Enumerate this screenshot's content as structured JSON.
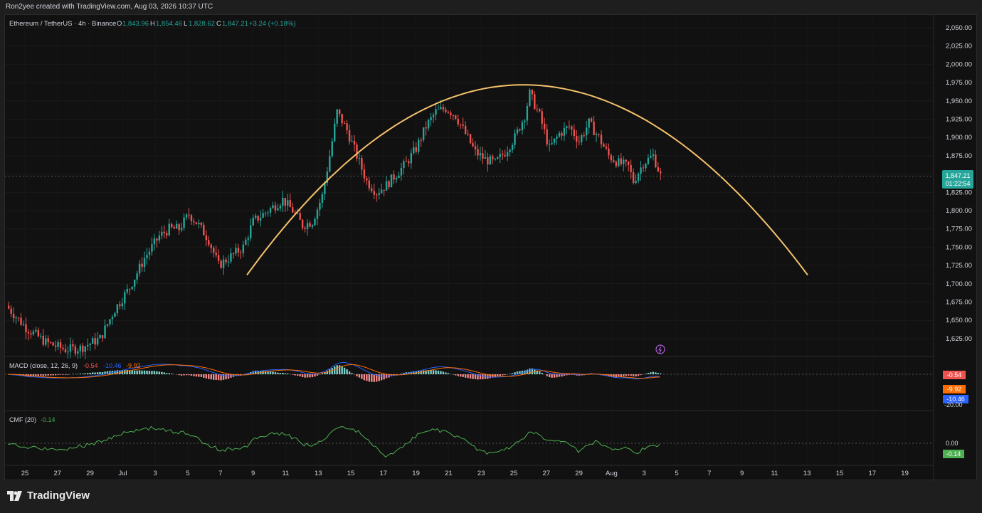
{
  "header": {
    "credit": "Ron2yee created with TradingView.com, Aug 03, 2026 10:37 UTC"
  },
  "legend": {
    "symbol": "Ethereum / TetherUS · 4h · Binance",
    "o_label": "O",
    "o_value": "1,843.96",
    "h_label": "H",
    "h_value": "1,854.46",
    "l_label": "L",
    "l_value": "1,828.62",
    "c_label": "C",
    "c_value": "1,847.21",
    "change": "+3.24 (+0.18%)"
  },
  "price_tag": {
    "value": "1,847.21",
    "countdown": "01:22:54"
  },
  "macd": {
    "label": "MACD (close, 12, 26, 9)",
    "v1": "-0.54",
    "v2": "-10.46",
    "v3": "-9.92",
    "tags": [
      "-0.54",
      "-9.92",
      "-10.46"
    ],
    "axis_tick": "-20.00"
  },
  "cmf": {
    "label": "CMF (20)",
    "value": "-0.14",
    "axis_tick": "0.00",
    "tag": "-0.14"
  },
  "brand": {
    "name": "TradingView"
  },
  "colors": {
    "up": "#26a69a",
    "down": "#ef5350",
    "arc": "#f5c26b",
    "macd_line": "#2962ff",
    "signal_line": "#ff6d00",
    "cmf_line": "#4caf50"
  },
  "chart_data": {
    "type": "candlestick",
    "title": "Ethereum / TetherUS · 4h · Binance",
    "ylim": [
      1600,
      2075
    ],
    "y_ticks": [
      "2,050.00",
      "2,025.00",
      "2,000.00",
      "1,975.00",
      "1,950.00",
      "1,925.00",
      "1,900.00",
      "1,875.00",
      "1,850.00",
      "1,825.00",
      "1,800.00",
      "1,775.00",
      "1,750.00",
      "1,725.00",
      "1,700.00",
      "1,675.00",
      "1,650.00",
      "1,625.00"
    ],
    "x_ticks": [
      "25",
      "27",
      "29",
      "Jul",
      "3",
      "5",
      "7",
      "9",
      "11",
      "13",
      "15",
      "17",
      "19",
      "21",
      "23",
      "25",
      "27",
      "29",
      "Aug",
      "3",
      "5",
      "7",
      "9",
      "11",
      "13",
      "15",
      "17",
      "19"
    ],
    "price_path": [
      [
        0,
        1670
      ],
      [
        8,
        1640
      ],
      [
        16,
        1620
      ],
      [
        24,
        1610
      ],
      [
        30,
        1612
      ],
      [
        38,
        1625
      ],
      [
        44,
        1665
      ],
      [
        50,
        1695
      ],
      [
        56,
        1735
      ],
      [
        62,
        1765
      ],
      [
        66,
        1775
      ],
      [
        70,
        1775
      ],
      [
        74,
        1795
      ],
      [
        78,
        1780
      ],
      [
        82,
        1760
      ],
      [
        86,
        1725
      ],
      [
        90,
        1735
      ],
      [
        96,
        1750
      ],
      [
        100,
        1785
      ],
      [
        106,
        1800
      ],
      [
        112,
        1815
      ],
      [
        116,
        1800
      ],
      [
        120,
        1780
      ],
      [
        124,
        1785
      ],
      [
        128,
        1820
      ],
      [
        131,
        1875
      ],
      [
        134,
        1935
      ],
      [
        138,
        1910
      ],
      [
        142,
        1875
      ],
      [
        146,
        1840
      ],
      [
        150,
        1825
      ],
      [
        154,
        1835
      ],
      [
        158,
        1850
      ],
      [
        162,
        1865
      ],
      [
        166,
        1885
      ],
      [
        170,
        1915
      ],
      [
        174,
        1935
      ],
      [
        178,
        1940
      ],
      [
        182,
        1930
      ],
      [
        186,
        1905
      ],
      [
        190,
        1880
      ],
      [
        194,
        1870
      ],
      [
        198,
        1865
      ],
      [
        202,
        1880
      ],
      [
        206,
        1900
      ],
      [
        210,
        1930
      ],
      [
        212,
        1960
      ],
      [
        216,
        1930
      ],
      [
        220,
        1885
      ],
      [
        224,
        1905
      ],
      [
        228,
        1915
      ],
      [
        232,
        1895
      ],
      [
        236,
        1920
      ],
      [
        240,
        1900
      ],
      [
        244,
        1875
      ],
      [
        248,
        1865
      ],
      [
        252,
        1860
      ],
      [
        254,
        1840
      ],
      [
        258,
        1865
      ],
      [
        262,
        1875
      ],
      [
        265,
        1848
      ]
    ],
    "arc_overlay": {
      "start": [
        "Jul 8",
        1712
      ],
      "peak": [
        "Jul 26",
        1972
      ],
      "end": [
        "Aug 12",
        1712
      ]
    },
    "last_price": 1847.21
  }
}
